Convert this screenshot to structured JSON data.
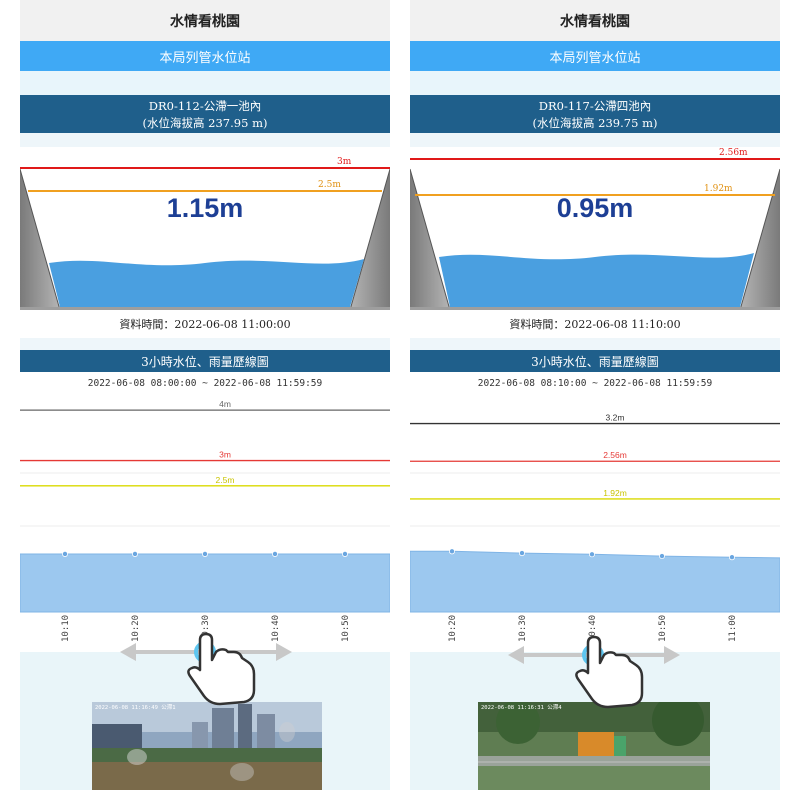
{
  "panels": [
    {
      "app_title": "水情看桃園",
      "section": "本局列管水位站",
      "station_name": "DR0-112-公滯一池內",
      "station_elev": "(水位海拔高 237.95 m)",
      "tank_levels": {
        "red": "3m",
        "orange": "2.5m"
      },
      "current_level": "1.15m",
      "data_time": "資料時間：2022-06-08 11:00:00",
      "chart_title": "3小時水位、雨量歷線圖",
      "time_range": "2022-06-08 08:00:00 ~ 2022-06-08 11:59:59",
      "camera_timestamp": "2022-06-08 11:16:49 公滯1",
      "chart_data": {
        "type": "area",
        "threshold_lines": [
          {
            "label": "4m",
            "value": 4,
            "color": "#666666"
          },
          {
            "label": "3m",
            "value": 3,
            "color": "#e53935"
          },
          {
            "label": "2.5m",
            "value": 2.5,
            "color": "#d9d900"
          }
        ],
        "x_ticks": [
          "10:10",
          "10:20",
          "10:30",
          "10:40",
          "10:50"
        ],
        "series": [
          {
            "values": [
              1.15,
              1.15,
              1.15,
              1.15,
              1.15
            ]
          }
        ]
      }
    },
    {
      "app_title": "水情看桃園",
      "section": "本局列管水位站",
      "station_name": "DR0-117-公滯四池內",
      "station_elev": "(水位海拔高 239.75 m)",
      "tank_levels": {
        "red": "2.56m",
        "orange": "1.92m"
      },
      "current_level": "0.95m",
      "data_time": "資料時間：2022-06-08 11:10:00",
      "chart_title": "3小時水位、雨量歷線圖",
      "time_range": "2022-06-08 08:10:00 ~ 2022-06-08 11:59:59",
      "camera_timestamp": "2022-06-08 11:16:31 公滯4",
      "chart_data": {
        "type": "area",
        "threshold_lines": [
          {
            "label": "3.2m",
            "value": 3.2,
            "color": "#333333"
          },
          {
            "label": "2.56m",
            "value": 2.56,
            "color": "#e53935"
          },
          {
            "label": "1.92m",
            "value": 1.92,
            "color": "#d9d900"
          }
        ],
        "x_ticks": [
          "10:20",
          "10:30",
          "10:40",
          "10:50",
          "11:00"
        ],
        "series": [
          {
            "values": [
              1.03,
              1.0,
              0.98,
              0.95,
              0.93
            ]
          }
        ]
      }
    }
  ],
  "colors": {
    "section_bar": "#3fa9f5",
    "header_dark": "#1f5f8b",
    "water": "#4a9fe0",
    "chart_fill": "#9cc8ef",
    "level_text": "#1d3f95"
  },
  "icons": [
    "swipe-hand-icon",
    "left-right-arrow-icon"
  ]
}
